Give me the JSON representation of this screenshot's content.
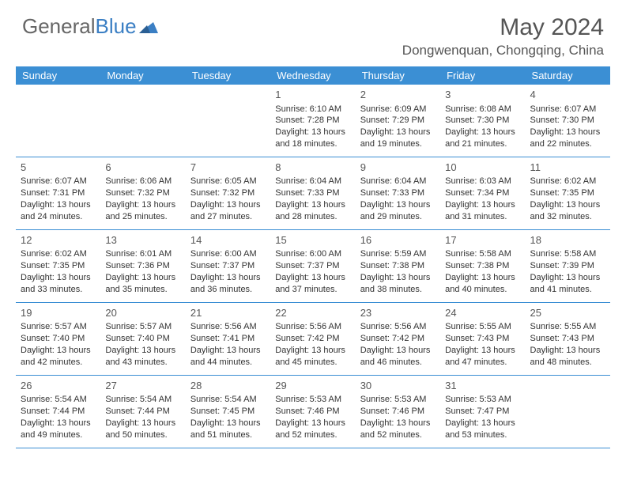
{
  "brand": {
    "part1": "General",
    "part2": "Blue"
  },
  "title": "May 2024",
  "location": "Dongwenquan, Chongqing, China",
  "colors": {
    "header_bg": "#3b8fd4",
    "header_text": "#ffffff",
    "border": "#3b8fd4",
    "text": "#333333",
    "title_text": "#555555"
  },
  "dayNames": [
    "Sunday",
    "Monday",
    "Tuesday",
    "Wednesday",
    "Thursday",
    "Friday",
    "Saturday"
  ],
  "weeks": [
    [
      {
        "day": "",
        "sunrise": "",
        "sunset": "",
        "daylight": ""
      },
      {
        "day": "",
        "sunrise": "",
        "sunset": "",
        "daylight": ""
      },
      {
        "day": "",
        "sunrise": "",
        "sunset": "",
        "daylight": ""
      },
      {
        "day": "1",
        "sunrise": "Sunrise: 6:10 AM",
        "sunset": "Sunset: 7:28 PM",
        "daylight": "Daylight: 13 hours and 18 minutes."
      },
      {
        "day": "2",
        "sunrise": "Sunrise: 6:09 AM",
        "sunset": "Sunset: 7:29 PM",
        "daylight": "Daylight: 13 hours and 19 minutes."
      },
      {
        "day": "3",
        "sunrise": "Sunrise: 6:08 AM",
        "sunset": "Sunset: 7:30 PM",
        "daylight": "Daylight: 13 hours and 21 minutes."
      },
      {
        "day": "4",
        "sunrise": "Sunrise: 6:07 AM",
        "sunset": "Sunset: 7:30 PM",
        "daylight": "Daylight: 13 hours and 22 minutes."
      }
    ],
    [
      {
        "day": "5",
        "sunrise": "Sunrise: 6:07 AM",
        "sunset": "Sunset: 7:31 PM",
        "daylight": "Daylight: 13 hours and 24 minutes."
      },
      {
        "day": "6",
        "sunrise": "Sunrise: 6:06 AM",
        "sunset": "Sunset: 7:32 PM",
        "daylight": "Daylight: 13 hours and 25 minutes."
      },
      {
        "day": "7",
        "sunrise": "Sunrise: 6:05 AM",
        "sunset": "Sunset: 7:32 PM",
        "daylight": "Daylight: 13 hours and 27 minutes."
      },
      {
        "day": "8",
        "sunrise": "Sunrise: 6:04 AM",
        "sunset": "Sunset: 7:33 PM",
        "daylight": "Daylight: 13 hours and 28 minutes."
      },
      {
        "day": "9",
        "sunrise": "Sunrise: 6:04 AM",
        "sunset": "Sunset: 7:33 PM",
        "daylight": "Daylight: 13 hours and 29 minutes."
      },
      {
        "day": "10",
        "sunrise": "Sunrise: 6:03 AM",
        "sunset": "Sunset: 7:34 PM",
        "daylight": "Daylight: 13 hours and 31 minutes."
      },
      {
        "day": "11",
        "sunrise": "Sunrise: 6:02 AM",
        "sunset": "Sunset: 7:35 PM",
        "daylight": "Daylight: 13 hours and 32 minutes."
      }
    ],
    [
      {
        "day": "12",
        "sunrise": "Sunrise: 6:02 AM",
        "sunset": "Sunset: 7:35 PM",
        "daylight": "Daylight: 13 hours and 33 minutes."
      },
      {
        "day": "13",
        "sunrise": "Sunrise: 6:01 AM",
        "sunset": "Sunset: 7:36 PM",
        "daylight": "Daylight: 13 hours and 35 minutes."
      },
      {
        "day": "14",
        "sunrise": "Sunrise: 6:00 AM",
        "sunset": "Sunset: 7:37 PM",
        "daylight": "Daylight: 13 hours and 36 minutes."
      },
      {
        "day": "15",
        "sunrise": "Sunrise: 6:00 AM",
        "sunset": "Sunset: 7:37 PM",
        "daylight": "Daylight: 13 hours and 37 minutes."
      },
      {
        "day": "16",
        "sunrise": "Sunrise: 5:59 AM",
        "sunset": "Sunset: 7:38 PM",
        "daylight": "Daylight: 13 hours and 38 minutes."
      },
      {
        "day": "17",
        "sunrise": "Sunrise: 5:58 AM",
        "sunset": "Sunset: 7:38 PM",
        "daylight": "Daylight: 13 hours and 40 minutes."
      },
      {
        "day": "18",
        "sunrise": "Sunrise: 5:58 AM",
        "sunset": "Sunset: 7:39 PM",
        "daylight": "Daylight: 13 hours and 41 minutes."
      }
    ],
    [
      {
        "day": "19",
        "sunrise": "Sunrise: 5:57 AM",
        "sunset": "Sunset: 7:40 PM",
        "daylight": "Daylight: 13 hours and 42 minutes."
      },
      {
        "day": "20",
        "sunrise": "Sunrise: 5:57 AM",
        "sunset": "Sunset: 7:40 PM",
        "daylight": "Daylight: 13 hours and 43 minutes."
      },
      {
        "day": "21",
        "sunrise": "Sunrise: 5:56 AM",
        "sunset": "Sunset: 7:41 PM",
        "daylight": "Daylight: 13 hours and 44 minutes."
      },
      {
        "day": "22",
        "sunrise": "Sunrise: 5:56 AM",
        "sunset": "Sunset: 7:42 PM",
        "daylight": "Daylight: 13 hours and 45 minutes."
      },
      {
        "day": "23",
        "sunrise": "Sunrise: 5:56 AM",
        "sunset": "Sunset: 7:42 PM",
        "daylight": "Daylight: 13 hours and 46 minutes."
      },
      {
        "day": "24",
        "sunrise": "Sunrise: 5:55 AM",
        "sunset": "Sunset: 7:43 PM",
        "daylight": "Daylight: 13 hours and 47 minutes."
      },
      {
        "day": "25",
        "sunrise": "Sunrise: 5:55 AM",
        "sunset": "Sunset: 7:43 PM",
        "daylight": "Daylight: 13 hours and 48 minutes."
      }
    ],
    [
      {
        "day": "26",
        "sunrise": "Sunrise: 5:54 AM",
        "sunset": "Sunset: 7:44 PM",
        "daylight": "Daylight: 13 hours and 49 minutes."
      },
      {
        "day": "27",
        "sunrise": "Sunrise: 5:54 AM",
        "sunset": "Sunset: 7:44 PM",
        "daylight": "Daylight: 13 hours and 50 minutes."
      },
      {
        "day": "28",
        "sunrise": "Sunrise: 5:54 AM",
        "sunset": "Sunset: 7:45 PM",
        "daylight": "Daylight: 13 hours and 51 minutes."
      },
      {
        "day": "29",
        "sunrise": "Sunrise: 5:53 AM",
        "sunset": "Sunset: 7:46 PM",
        "daylight": "Daylight: 13 hours and 52 minutes."
      },
      {
        "day": "30",
        "sunrise": "Sunrise: 5:53 AM",
        "sunset": "Sunset: 7:46 PM",
        "daylight": "Daylight: 13 hours and 52 minutes."
      },
      {
        "day": "31",
        "sunrise": "Sunrise: 5:53 AM",
        "sunset": "Sunset: 7:47 PM",
        "daylight": "Daylight: 13 hours and 53 minutes."
      },
      {
        "day": "",
        "sunrise": "",
        "sunset": "",
        "daylight": ""
      }
    ]
  ]
}
